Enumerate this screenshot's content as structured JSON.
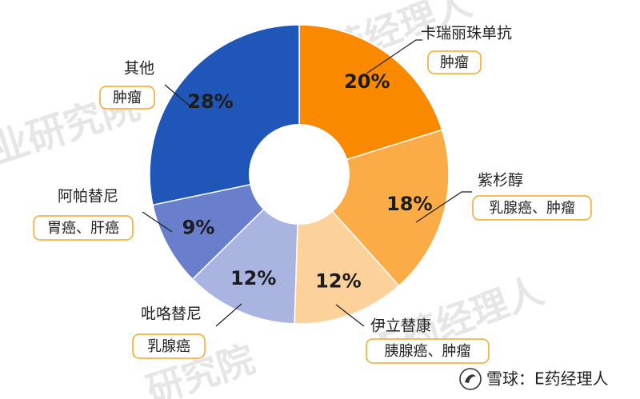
{
  "chart_data": {
    "type": "pie",
    "series": [
      {
        "label": "卡瑞丽珠单抗",
        "indication": "肿瘤",
        "value": 20,
        "value_label": "20%",
        "color": "#f98a00"
      },
      {
        "label": "紫杉醇",
        "indication": "乳腺癌、肿瘤",
        "value": 18,
        "value_label": "18%",
        "color": "#fbac46"
      },
      {
        "label": "伊立替康",
        "indication": "胰腺癌、肿瘤",
        "value": 12,
        "value_label": "12%",
        "color": "#fdd29a"
      },
      {
        "label": "吡咯替尼",
        "indication": "乳腺癌",
        "value": 12,
        "value_label": "12%",
        "color": "#aab4e1"
      },
      {
        "label": "阿帕替尼",
        "indication": "胃癌、肝癌",
        "value": 9,
        "value_label": "9%",
        "color": "#6a7fcb"
      },
      {
        "label": "其他",
        "indication": "肿瘤",
        "value": 28,
        "value_label": "28%",
        "color": "#1f56b7"
      }
    ],
    "donut": true
  },
  "watermark": {
    "text_1": "E药经理人",
    "text_2": "业研究院",
    "text_3": "研究院"
  },
  "credit": {
    "text": "雪球：E药经理人"
  }
}
